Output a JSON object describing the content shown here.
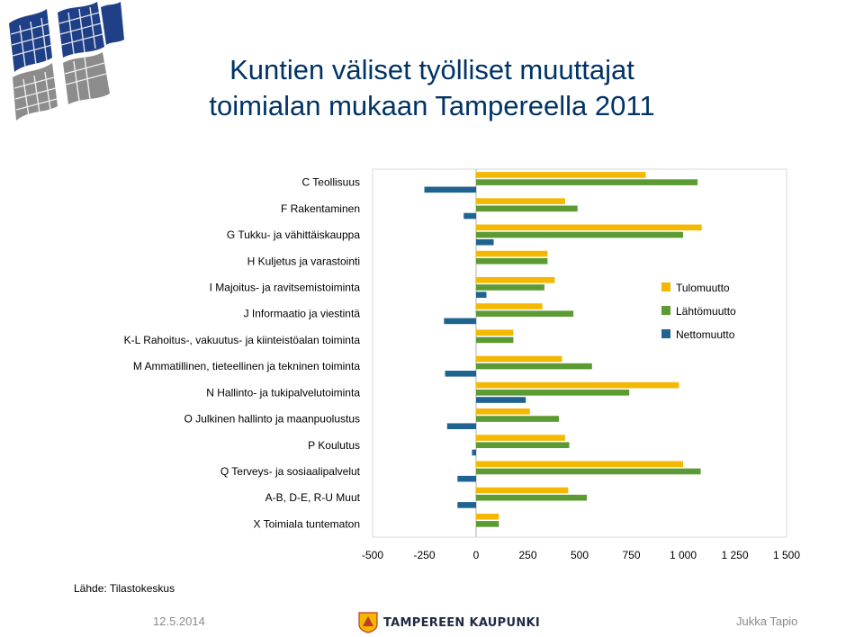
{
  "title": {
    "line1": "Kuntien väliset työlliset muuttajat",
    "line2": "toimialan mukaan Tampereella 2011"
  },
  "source": "Lähde: Tilastokeskus",
  "footer": {
    "date": "12.5.2014",
    "brand": "TAMPEREEN KAUPUNKI",
    "author": "Jukka Tapio"
  },
  "colors": {
    "title": "#003366",
    "tulomuutto": "#F5B800",
    "lahtomuutto": "#5C9A34",
    "nettomuutto": "#1F6491"
  },
  "chart_data": {
    "type": "bar",
    "orientation": "horizontal",
    "title": "Kuntien väliset työlliset muuttajat toimialan mukaan Tampereella 2011",
    "categories": [
      "C Teollisuus",
      "F Rakentaminen",
      "G Tukku- ja vähittäiskauppa",
      "H Kuljetus ja varastointi",
      "I Majoitus- ja ravitsemistoiminta",
      "J Informaatio ja viestintä",
      "K-L Rahoitus-, vakuutus- ja kiinteistöalan toiminta",
      "M Ammatillinen, tieteellinen ja tekninen toiminta",
      "N Hallinto- ja tukipalvelutoiminta",
      "O Julkinen hallinto ja maanpuolustus",
      "P Koulutus",
      "Q Terveys- ja sosiaalipalvelut",
      "A-B, D-E, R-U Muut",
      "X Toimiala tuntematon"
    ],
    "series": [
      {
        "name": "Tulomuutto",
        "values": [
          820,
          430,
          1090,
          345,
          380,
          320,
          180,
          415,
          980,
          260,
          430,
          1000,
          445,
          110
        ]
      },
      {
        "name": "Lähtömuutto",
        "values": [
          1070,
          490,
          1000,
          345,
          330,
          470,
          180,
          560,
          740,
          400,
          450,
          1085,
          535,
          110
        ]
      },
      {
        "name": "Nettomuutto",
        "values": [
          -250,
          -60,
          85,
          0,
          50,
          -155,
          0,
          -150,
          240,
          -140,
          -20,
          -90,
          -90,
          0
        ]
      }
    ],
    "xlim": [
      -500,
      1500
    ],
    "xticks": [
      -500,
      -250,
      0,
      250,
      500,
      750,
      1000,
      1250,
      1500
    ],
    "xtick_labels": [
      "-500",
      "-250",
      "0",
      "250",
      "500",
      "750",
      "1 000",
      "1 250",
      "1 500"
    ],
    "legend": [
      "Tulomuutto",
      "Lähtömuutto",
      "Nettomuutto"
    ],
    "legend_position": "right"
  }
}
